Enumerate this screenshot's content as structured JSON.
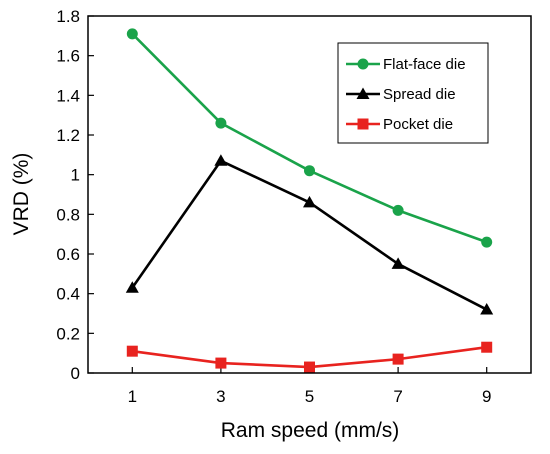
{
  "chart_data": {
    "type": "line",
    "title": "",
    "xlabel": "Ram speed (mm/s)",
    "ylabel": "VRD (%)",
    "x": [
      1,
      3,
      5,
      7,
      9
    ],
    "xlim": [
      0,
      10
    ],
    "ylim": [
      0,
      1.8
    ],
    "xticks": [
      1,
      3,
      5,
      7,
      9
    ],
    "xtick_labels": [
      "1",
      "3",
      "5",
      "7",
      "9"
    ],
    "yticks": [
      0,
      0.2,
      0.4,
      0.6,
      0.8,
      1,
      1.2,
      1.4,
      1.6,
      1.8
    ],
    "ytick_labels": [
      "0",
      "0.2",
      "0.4",
      "0.6",
      "0.8",
      "1",
      "1.2",
      "1.4",
      "1.6",
      "1.8"
    ],
    "grid": false,
    "legend_position": "top-right",
    "series": [
      {
        "name": "Flat-face die",
        "values": [
          1.71,
          1.26,
          1.02,
          0.82,
          0.66
        ],
        "color": "#1aa34a",
        "marker": "circle"
      },
      {
        "name": "Spread die",
        "values": [
          0.43,
          1.07,
          0.86,
          0.55,
          0.32
        ],
        "color": "#000000",
        "marker": "triangle"
      },
      {
        "name": "Pocket die",
        "values": [
          0.11,
          0.05,
          0.03,
          0.07,
          0.13
        ],
        "color": "#e8231f",
        "marker": "square"
      }
    ]
  }
}
